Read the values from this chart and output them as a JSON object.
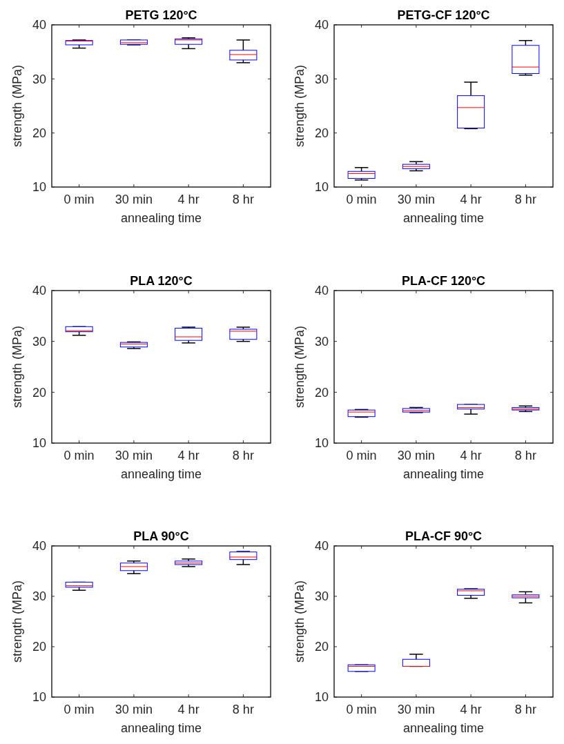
{
  "chart_data": [
    {
      "type": "box",
      "title": "PETG 120°C",
      "xlabel": "annealing time",
      "ylabel": "strength (MPa)",
      "categories": [
        "0 min",
        "30 min",
        "4 hr",
        "8 hr"
      ],
      "ylim": [
        10,
        40
      ],
      "yticks": [
        10,
        20,
        30,
        40
      ],
      "boxes": [
        {
          "low": 35.7,
          "q1": 36.3,
          "median": 37.0,
          "q3": 37.1,
          "high": 37.2
        },
        {
          "low": 36.3,
          "q1": 36.4,
          "median": 36.7,
          "q3": 37.2,
          "high": 37.2
        },
        {
          "low": 35.6,
          "q1": 36.4,
          "median": 37.2,
          "q3": 37.4,
          "high": 37.6
        },
        {
          "low": 33.0,
          "q1": 33.5,
          "median": 34.5,
          "q3": 35.3,
          "high": 37.2
        }
      ]
    },
    {
      "type": "box",
      "title": "PETG-CF 120°C",
      "xlabel": "annealing time",
      "ylabel": "strength (MPa)",
      "categories": [
        "0 min",
        "30 min",
        "4 hr",
        "8 hr"
      ],
      "ylim": [
        10,
        40
      ],
      "yticks": [
        10,
        20,
        30,
        40
      ],
      "boxes": [
        {
          "low": 11.3,
          "q1": 11.6,
          "median": 12.5,
          "q3": 12.9,
          "high": 13.6
        },
        {
          "low": 13.0,
          "q1": 13.4,
          "median": 13.8,
          "q3": 14.2,
          "high": 14.7
        },
        {
          "low": 20.8,
          "q1": 20.9,
          "median": 24.7,
          "q3": 26.9,
          "high": 29.4
        },
        {
          "low": 30.7,
          "q1": 31.0,
          "median": 32.2,
          "q3": 36.2,
          "high": 37.1
        }
      ]
    },
    {
      "type": "box",
      "title": "PLA 120°C",
      "xlabel": "annealing time",
      "ylabel": "strength (MPa)",
      "categories": [
        "0 min",
        "30 min",
        "4 hr",
        "8 hr"
      ],
      "ylim": [
        10,
        40
      ],
      "yticks": [
        10,
        20,
        30,
        40
      ],
      "boxes": [
        {
          "low": 31.2,
          "q1": 31.9,
          "median": 32.1,
          "q3": 32.9,
          "high": 32.9
        },
        {
          "low": 28.6,
          "q1": 28.9,
          "median": 29.5,
          "q3": 29.8,
          "high": 29.9
        },
        {
          "low": 29.7,
          "q1": 30.2,
          "median": 30.9,
          "q3": 32.6,
          "high": 32.8
        },
        {
          "low": 30.0,
          "q1": 30.4,
          "median": 32.0,
          "q3": 32.4,
          "high": 32.8
        }
      ]
    },
    {
      "type": "box",
      "title": "PLA-CF 120°C",
      "xlabel": "annealing time",
      "ylabel": "strength (MPa)",
      "categories": [
        "0 min",
        "30 min",
        "4 hr",
        "8 hr"
      ],
      "ylim": [
        10,
        40
      ],
      "yticks": [
        10,
        20,
        30,
        40
      ],
      "boxes": [
        {
          "low": 15.1,
          "q1": 15.2,
          "median": 16.1,
          "q3": 16.5,
          "high": 16.6
        },
        {
          "low": 16.0,
          "q1": 16.1,
          "median": 16.4,
          "q3": 16.8,
          "high": 17.0
        },
        {
          "low": 15.7,
          "q1": 16.7,
          "median": 17.0,
          "q3": 17.6,
          "high": 17.6
        },
        {
          "low": 16.2,
          "q1": 16.5,
          "median": 16.7,
          "q3": 17.0,
          "high": 17.3
        }
      ]
    },
    {
      "type": "box",
      "title": "PLA 90°C",
      "xlabel": "annealing time",
      "ylabel": "strength (MPa)",
      "categories": [
        "0 min",
        "30 min",
        "4 hr",
        "8 hr"
      ],
      "ylim": [
        10,
        40
      ],
      "yticks": [
        10,
        20,
        30,
        40
      ],
      "boxes": [
        {
          "low": 31.2,
          "q1": 31.8,
          "median": 32.1,
          "q3": 32.8,
          "high": 32.8
        },
        {
          "low": 34.5,
          "q1": 35.1,
          "median": 35.9,
          "q3": 36.6,
          "high": 37.0
        },
        {
          "low": 35.9,
          "q1": 36.3,
          "median": 36.6,
          "q3": 37.0,
          "high": 37.4
        },
        {
          "low": 36.3,
          "q1": 37.3,
          "median": 37.8,
          "q3": 38.8,
          "high": 38.9
        }
      ]
    },
    {
      "type": "box",
      "title": "PLA-CF 90°C",
      "xlabel": "annealing time",
      "ylabel": "strength (MPa)",
      "categories": [
        "0 min",
        "30 min",
        "4 hr",
        "8 hr"
      ],
      "ylim": [
        10,
        40
      ],
      "yticks": [
        10,
        20,
        30,
        40
      ],
      "boxes": [
        {
          "low": 15.1,
          "q1": 15.1,
          "median": 16.1,
          "q3": 16.4,
          "high": 16.4
        },
        {
          "low": 16.1,
          "q1": 16.1,
          "median": 16.1,
          "q3": 17.5,
          "high": 18.5
        },
        {
          "low": 29.6,
          "q1": 30.2,
          "median": 31.1,
          "q3": 31.4,
          "high": 31.5
        },
        {
          "low": 28.7,
          "q1": 29.7,
          "median": 30.0,
          "q3": 30.3,
          "high": 30.9
        }
      ]
    }
  ]
}
